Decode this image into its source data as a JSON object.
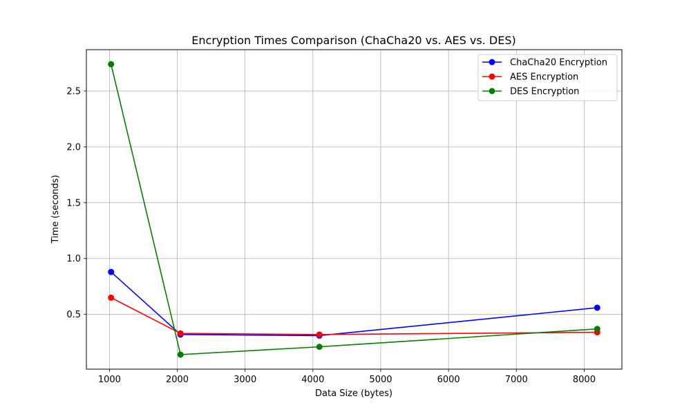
{
  "chart_data": {
    "type": "line",
    "title": "Encryption Times Comparison (ChaCha20 vs. AES vs. DES)",
    "xlabel": "Data Size (bytes)",
    "ylabel": "Time (seconds)",
    "x": [
      1024,
      2048,
      4096,
      8192
    ],
    "xlim": [
      660,
      8556
    ],
    "ylim": [
      0.01,
      2.87
    ],
    "xticks": [
      1000,
      2000,
      3000,
      4000,
      5000,
      6000,
      7000,
      8000
    ],
    "yticks": [
      0.5,
      1.0,
      1.5,
      2.0,
      2.5
    ],
    "grid": true,
    "legend_position": "top-right",
    "series": [
      {
        "name": "ChaCha20 Encryption",
        "color": "#0000ff",
        "values": [
          0.88,
          0.32,
          0.31,
          0.56
        ]
      },
      {
        "name": "AES Encryption",
        "color": "#ff0000",
        "values": [
          0.65,
          0.33,
          0.32,
          0.34
        ]
      },
      {
        "name": "DES Encryption",
        "color": "#008000",
        "values": [
          2.74,
          0.14,
          0.21,
          0.37
        ]
      }
    ]
  }
}
